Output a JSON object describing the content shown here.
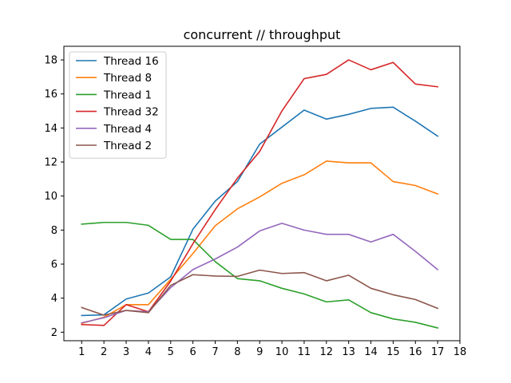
{
  "chart_data": {
    "type": "line",
    "title": "concurrent // throughput",
    "xlabel": "",
    "ylabel": "",
    "x": [
      1,
      2,
      3,
      4,
      5,
      6,
      7,
      8,
      9,
      10,
      11,
      12,
      13,
      14,
      15,
      16,
      17
    ],
    "xticks": [
      1,
      2,
      3,
      4,
      5,
      6,
      7,
      8,
      9,
      10,
      11,
      12,
      13,
      14,
      15,
      16,
      17,
      18
    ],
    "yticks": [
      2,
      4,
      6,
      8,
      10,
      12,
      14,
      16,
      18
    ],
    "xlim": [
      0.2,
      18.0
    ],
    "ylim": [
      1.5,
      18.8
    ],
    "grid": false,
    "legend_position": "top-left",
    "series": [
      {
        "name": "Thread 16",
        "color": "#1f77b4",
        "values": [
          2.98,
          3.02,
          3.95,
          4.3,
          5.25,
          8.05,
          9.7,
          10.85,
          13.05,
          14.05,
          15.05,
          14.52,
          14.8,
          15.15,
          15.22,
          14.4,
          13.52
        ]
      },
      {
        "name": "Thread 8",
        "color": "#ff7f0e",
        "values": [
          2.52,
          2.88,
          3.62,
          3.62,
          5.1,
          6.62,
          8.25,
          9.25,
          9.95,
          10.75,
          11.25,
          12.05,
          11.95,
          11.95,
          10.85,
          10.62,
          10.12
        ]
      },
      {
        "name": "Thread 1",
        "color": "#2ca02c",
        "values": [
          8.35,
          8.45,
          8.45,
          8.28,
          7.45,
          7.45,
          6.15,
          5.15,
          5.02,
          4.58,
          4.25,
          3.78,
          3.9,
          3.15,
          2.78,
          2.58,
          2.25
        ]
      },
      {
        "name": "Thread 32",
        "color": "#d62728",
        "values": [
          2.45,
          2.4,
          3.62,
          3.2,
          5.0,
          7.2,
          9.2,
          11.05,
          12.62,
          15.0,
          16.9,
          17.15,
          18.0,
          17.42,
          17.85,
          16.58,
          16.42
        ]
      },
      {
        "name": "Thread 4",
        "color": "#9467bd",
        "values": [
          2.55,
          2.85,
          3.28,
          3.2,
          4.62,
          5.68,
          6.3,
          7.0,
          7.95,
          8.4,
          8.0,
          7.75,
          7.75,
          7.3,
          7.75,
          6.75,
          5.68
        ]
      },
      {
        "name": "Thread 2",
        "color": "#8c564b",
        "values": [
          3.45,
          3.0,
          3.28,
          3.15,
          4.75,
          5.38,
          5.3,
          5.28,
          5.65,
          5.45,
          5.5,
          5.02,
          5.35,
          4.58,
          4.2,
          3.92,
          3.4
        ]
      }
    ]
  }
}
